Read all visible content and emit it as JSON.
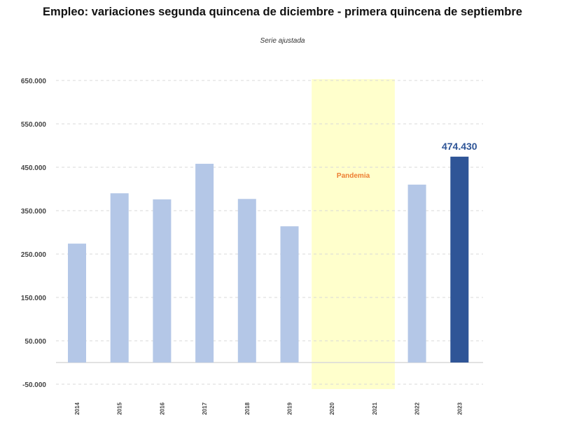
{
  "chart_data": {
    "type": "bar",
    "title": "Empleo: variaciones segunda quincena de diciembre - primera quincena de septiembre",
    "subtitle": "Serie ajustada",
    "categories": [
      "2014",
      "2015",
      "2016",
      "2017",
      "2018",
      "2019",
      "2020",
      "2021",
      "2022",
      "2023"
    ],
    "values": [
      274000,
      390000,
      376000,
      458000,
      377000,
      314000,
      null,
      null,
      410000,
      474430
    ],
    "highlight": {
      "category": "2023",
      "label": "474.430",
      "color": "#2f5597"
    },
    "bar_color": "#b4c7e7",
    "shaded_region": {
      "from": "2020",
      "to": "2021",
      "label": "Pandemia",
      "color": "#ffffcc",
      "label_color": "#ed7d31"
    },
    "yticks": [
      "650.000",
      "550.000",
      "450.000",
      "350.000",
      "250.000",
      "150.000",
      "50.000",
      "-50.000"
    ],
    "ytick_values": [
      650000,
      550000,
      450000,
      350000,
      250000,
      150000,
      50000,
      -50000
    ],
    "ylim": [
      -50000,
      650000
    ],
    "grid": true,
    "xlabel": "",
    "ylabel": ""
  }
}
